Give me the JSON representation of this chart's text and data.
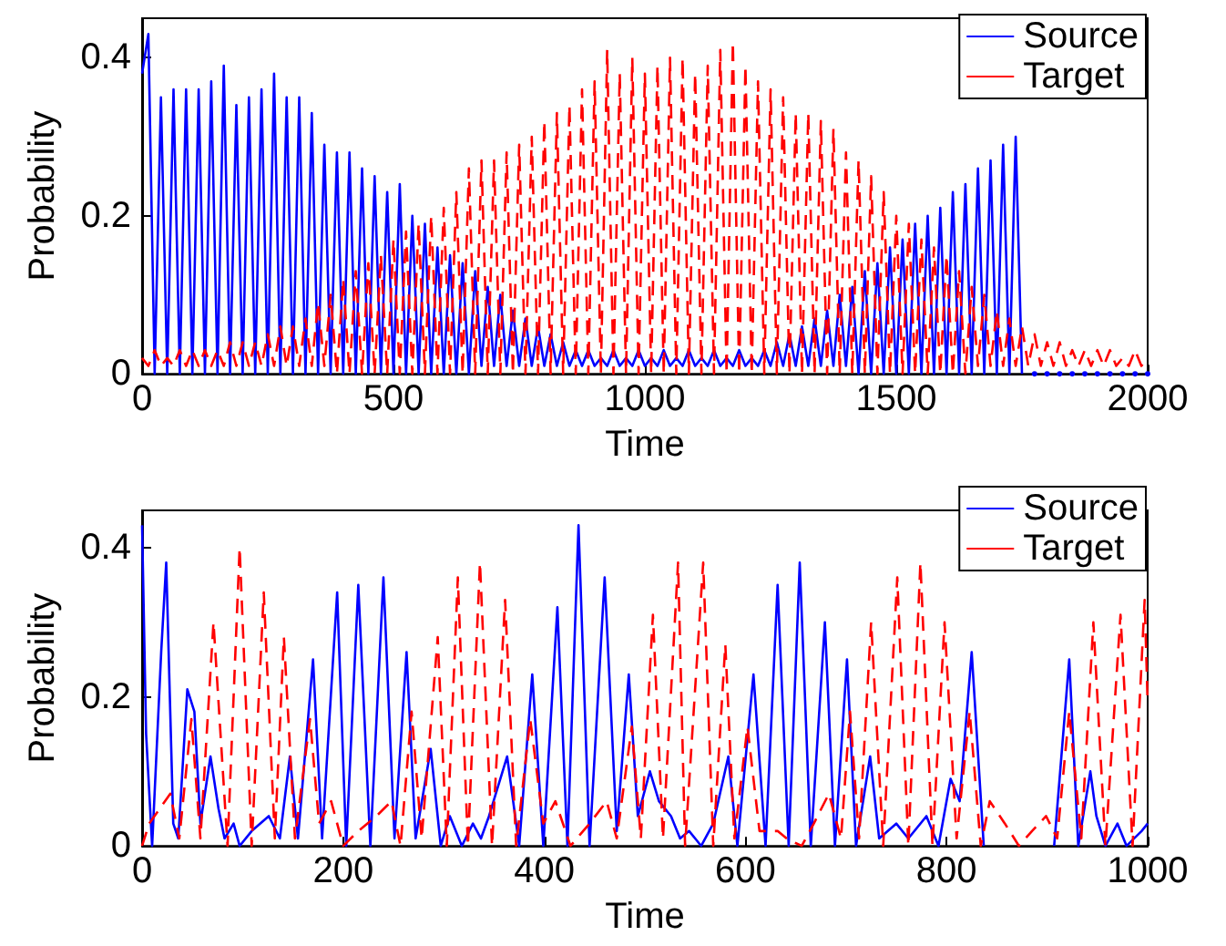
{
  "chart_data": [
    {
      "type": "line",
      "xlabel": "Time",
      "ylabel": "Probability",
      "xlim": [
        0,
        2000
      ],
      "xticks": [
        0,
        500,
        1000,
        1500,
        2000
      ],
      "ylim": [
        0,
        0.45
      ],
      "yticks": [
        0,
        0.2,
        0.4
      ],
      "legend": "top right",
      "x": [
        0,
        12.5,
        25,
        37.5,
        50,
        62.5,
        75,
        87.5,
        100,
        112.5,
        125,
        137.5,
        150,
        162.5,
        175,
        187.5,
        200,
        212.5,
        225,
        237.5,
        250,
        262.5,
        275,
        287.5,
        300,
        312.5,
        325,
        337.5,
        350,
        362.5,
        375,
        387.5,
        400,
        412.5,
        425,
        437.5,
        450,
        462.5,
        475,
        487.5,
        500,
        512.5,
        525,
        537.5,
        550,
        562.5,
        575,
        587.5,
        600,
        612.5,
        625,
        637.5,
        650,
        662.5,
        675,
        687.5,
        700,
        712.5,
        725,
        737.5,
        750,
        762.5,
        775,
        787.5,
        800,
        812.5,
        825,
        837.5,
        850,
        862.5,
        875,
        887.5,
        900,
        912.5,
        925,
        937.5,
        950,
        962.5,
        975,
        987.5,
        1000,
        1012.5,
        1025,
        1037.5,
        1050,
        1062.5,
        1075,
        1087.5,
        1100,
        1112.5,
        1125,
        1137.5,
        1150,
        1162.5,
        1175,
        1187.5,
        1200,
        1212.5,
        1225,
        1237.5,
        1250,
        1262.5,
        1275,
        1287.5,
        1300,
        1312.5,
        1325,
        1337.5,
        1350,
        1362.5,
        1375,
        1387.5,
        1400,
        1412.5,
        1425,
        1437.5,
        1450,
        1462.5,
        1475,
        1487.5,
        1500,
        1512.5,
        1525,
        1537.5,
        1550,
        1562.5,
        1575,
        1587.5,
        1600,
        1612.5,
        1625,
        1637.5,
        1650,
        1662.5,
        1675,
        1687.5,
        1700,
        1712.5,
        1725,
        1737.5,
        1750,
        1762.5,
        1775,
        1787.5,
        1800,
        1812.5,
        1825,
        1837.5,
        1850,
        1862.5,
        1875,
        1887.5,
        1900,
        1912.5,
        1925,
        1937.5,
        1950,
        1962.5,
        1975,
        1987.5,
        2000
      ],
      "series": [
        {
          "name": "Source",
          "color": "#0000ff",
          "line_style": "solid",
          "values": [
            0.38,
            0.43,
            0,
            0.35,
            0,
            0.36,
            0,
            0.36,
            0,
            0.36,
            0,
            0.37,
            0,
            0.39,
            0,
            0.34,
            0,
            0.35,
            0,
            0.36,
            0,
            0.38,
            0,
            0.35,
            0,
            0.35,
            0,
            0.33,
            0,
            0.29,
            0,
            0.28,
            0,
            0.28,
            0,
            0.26,
            0,
            0.25,
            0,
            0.23,
            0,
            0.24,
            0,
            0.2,
            0,
            0.19,
            0,
            0.16,
            0,
            0.15,
            0,
            0.14,
            0,
            0.13,
            0.01,
            0.11,
            0.01,
            0.1,
            0.01,
            0.08,
            0.01,
            0.07,
            0.01,
            0.06,
            0.01,
            0.05,
            0.01,
            0.04,
            0.01,
            0.03,
            0.01,
            0.03,
            0.01,
            0.02,
            0.01,
            0.03,
            0.01,
            0.02,
            0.01,
            0.03,
            0.01,
            0.02,
            0.01,
            0.03,
            0.01,
            0.02,
            0.01,
            0.03,
            0.01,
            0.02,
            0.01,
            0.03,
            0.01,
            0.02,
            0.01,
            0.03,
            0.01,
            0.02,
            0.01,
            0.03,
            0.01,
            0.04,
            0.01,
            0.05,
            0.01,
            0.06,
            0.01,
            0.07,
            0.01,
            0.08,
            0.01,
            0.1,
            0.01,
            0.11,
            0,
            0.13,
            0,
            0.14,
            0,
            0.16,
            0,
            0.17,
            0,
            0.19,
            0,
            0.2,
            0,
            0.21,
            0,
            0.23,
            0,
            0.24,
            0,
            0.26,
            0,
            0.27,
            0,
            0.29,
            0,
            0.3,
            0,
            null,
            0,
            null,
            0,
            null,
            0,
            null,
            0,
            null,
            0,
            null,
            0,
            null,
            0,
            null,
            0,
            null,
            0,
            null,
            0
          ]
        },
        {
          "name": "Target",
          "color": "#ff0000",
          "line_style": "dashed",
          "values": [
            0.02,
            0.01,
            0.03,
            0.01,
            0.02,
            0.01,
            0.03,
            0.01,
            0.03,
            0.01,
            0.03,
            0.01,
            0.03,
            0.01,
            0.04,
            0.01,
            0.04,
            0.01,
            0.04,
            0.01,
            0.05,
            0.01,
            0.06,
            0.01,
            0.06,
            0.01,
            0.07,
            0.01,
            0.09,
            0.01,
            0.1,
            0,
            0.12,
            0,
            0.13,
            0,
            0.14,
            0,
            0.15,
            0,
            0.17,
            0,
            0.18,
            0,
            0.19,
            0,
            0.2,
            0,
            0.21,
            0,
            0.23,
            0,
            0.26,
            0,
            0.27,
            0,
            0.27,
            0,
            0.28,
            0,
            0.29,
            0,
            0.3,
            0,
            0.32,
            0,
            0.33,
            0,
            0.34,
            0,
            0.36,
            0,
            0.37,
            0,
            0.41,
            0,
            0.38,
            0,
            0.4,
            0,
            0.38,
            0,
            0.39,
            0,
            0.4,
            0,
            0.4,
            0,
            0.38,
            0,
            0.39,
            0,
            0.41,
            0,
            0.42,
            0,
            0.39,
            0,
            0.37,
            0,
            0.36,
            0,
            0.35,
            0,
            0.33,
            0,
            0.33,
            0,
            0.32,
            0,
            0.31,
            0,
            0.28,
            0,
            0.27,
            0,
            0.25,
            0,
            0.23,
            0,
            0.2,
            0,
            0.19,
            0,
            0.17,
            0,
            0.16,
            0,
            0.15,
            0,
            0.13,
            0,
            0.11,
            0.01,
            0.1,
            0.01,
            0.08,
            0.01,
            0.07,
            0.01,
            0.06,
            0.01,
            0.05,
            0.01,
            0.04,
            0.01,
            0.04,
            0.01,
            0.03,
            0.01,
            0.03,
            0.01,
            0.03,
            0.01,
            0.03,
            0.01,
            0.02,
            0.01,
            0.03,
            0.01,
            0.02
          ]
        }
      ]
    },
    {
      "type": "line",
      "xlabel": "Time",
      "ylabel": "Probability",
      "xlim": [
        0,
        1000
      ],
      "xticks": [
        0,
        200,
        400,
        600,
        800,
        1000
      ],
      "ylim": [
        0,
        0.45
      ],
      "yticks": [
        0,
        0.2,
        0.4
      ],
      "legend": "top right",
      "series": [
        {
          "name": "Source",
          "color": "#0000ff",
          "line_style": "solid",
          "x": [
            0,
            4,
            10,
            19,
            24,
            31,
            36,
            45,
            52,
            58,
            68,
            76,
            82,
            91,
            97,
            109,
            126,
            137,
            147,
            155,
            170,
            179,
            194,
            203,
            215,
            227,
            240,
            251,
            263,
            272,
            287,
            297,
            306,
            318,
            329,
            337,
            345,
            363,
            375,
            388,
            399,
            413,
            423,
            434,
            445,
            460,
            472,
            484,
            493,
            505,
            514,
            526,
            535,
            544,
            556,
            568,
            583,
            592,
            608,
            620,
            632,
            643,
            654,
            665,
            679,
            689,
            701,
            710,
            724,
            733,
            750,
            762,
            780,
            792,
            804,
            813,
            825,
            837,
            870,
            907,
            922,
            931,
            943,
            949,
            958,
            970,
            979,
            994,
            1000
          ],
          "values": [
            0.43,
            0.15,
            0,
            0.26,
            0.38,
            0.03,
            0.01,
            0.21,
            0.18,
            0.03,
            0.12,
            0.05,
            0.01,
            0.03,
            0,
            0.02,
            0.04,
            0.01,
            0.12,
            0.01,
            0.25,
            0.01,
            0.34,
            0,
            0.35,
            0,
            0.36,
            0.01,
            0.26,
            0.01,
            0.13,
            0,
            0.04,
            0,
            0.03,
            0.01,
            0.04,
            0.12,
            0,
            0.23,
            0,
            0.32,
            0,
            0.43,
            0,
            0.36,
            0.02,
            0.23,
            0.04,
            0.1,
            0.06,
            0.04,
            0.01,
            0.02,
            0,
            0.03,
            0.12,
            0,
            0.23,
            0,
            0.35,
            0,
            0.38,
            0,
            0.3,
            0,
            0.25,
            0,
            0.12,
            0.01,
            0.03,
            0.01,
            0.04,
            0,
            0.09,
            0.06,
            0.26,
            0,
            null,
            0,
            0.25,
            0,
            0.1,
            0.04,
            0,
            0.03,
            0,
            0.02,
            0.03
          ]
        },
        {
          "name": "Target",
          "color": "#ff0000",
          "line_style": "dashed",
          "x": [
            0,
            7,
            28,
            37,
            49,
            58,
            71,
            85,
            97,
            109,
            121,
            132,
            141,
            152,
            167,
            176,
            188,
            200,
            215,
            233,
            248,
            257,
            268,
            278,
            294,
            303,
            314,
            324,
            336,
            348,
            361,
            372,
            386,
            399,
            411,
            426,
            445,
            462,
            472,
            487,
            496,
            508,
            518,
            533,
            540,
            558,
            568,
            580,
            589,
            602,
            614,
            632,
            641,
            656,
            668,
            683,
            695,
            704,
            713,
            725,
            737,
            751,
            762,
            774,
            786,
            798,
            810,
            823,
            834,
            843,
            858,
            872,
            885,
            899,
            910,
            922,
            934,
            946,
            958,
            973,
            985,
            997,
            1000
          ],
          "values": [
            0,
            0.03,
            0.07,
            0.01,
            0.17,
            0.01,
            0.3,
            0,
            0.4,
            0,
            0.34,
            0.01,
            0.28,
            0.01,
            0.17,
            0.03,
            0.06,
            0,
            0.02,
            0.04,
            0.06,
            0,
            0.18,
            0.01,
            0.28,
            0,
            0.36,
            0,
            0.38,
            0,
            0.33,
            0,
            0.17,
            0.03,
            0.06,
            0,
            0.03,
            0.06,
            0.01,
            0.16,
            0.01,
            0.31,
            0.01,
            0.38,
            0,
            0.38,
            0,
            0.27,
            0.01,
            0.16,
            0.02,
            0.02,
            0.01,
            0,
            0.03,
            0.07,
            0.01,
            0.18,
            0.01,
            0.3,
            0,
            0.36,
            0,
            0.38,
            0,
            0.3,
            0.01,
            0.18,
            0,
            0.06,
            0.03,
            0,
            0.02,
            0.04,
            0.01,
            0.18,
            0.01,
            0.3,
            0,
            0.31,
            0,
            0.33,
            0.19
          ]
        }
      ]
    }
  ]
}
